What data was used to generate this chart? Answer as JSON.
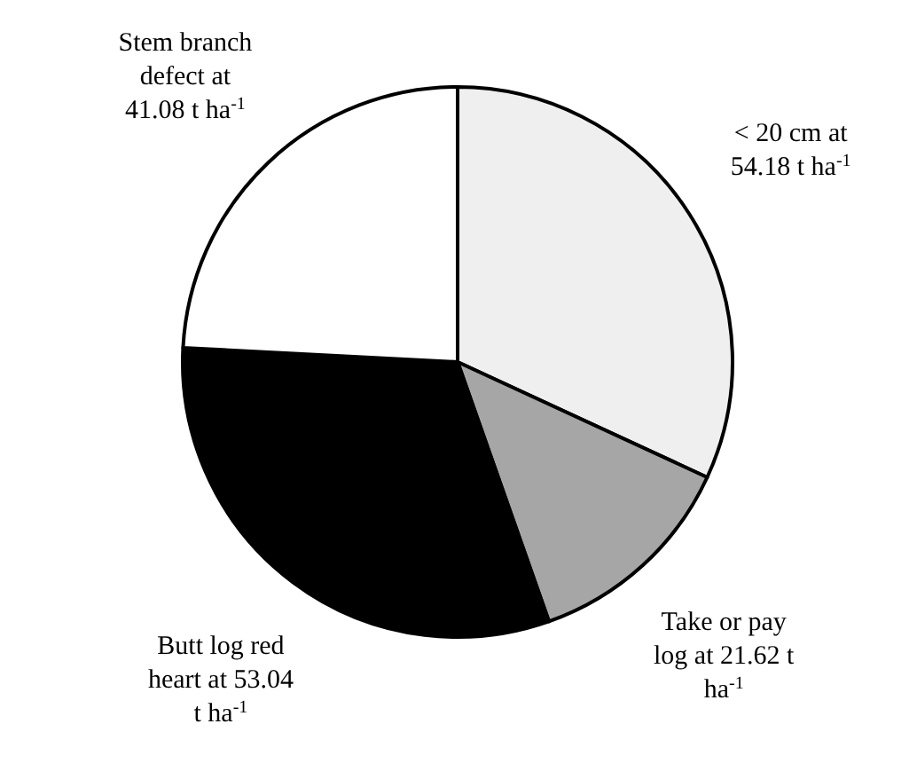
{
  "chart_data": {
    "type": "pie",
    "categories": [
      "< 20 cm at 54.18 t ha$^{-1}$",
      "Take or pay log at 21.62 t ha$^{-1}$",
      "Butt log red heart at 53.04 t ha$^{-1}$",
      "Stem branch defect at 41.08 t ha$^{-1}$"
    ],
    "values": [
      54.18,
      21.62,
      53.04,
      41.08
    ],
    "colors": [
      "#efefef",
      "#a6a6a6",
      "#000000",
      "#ffffff"
    ]
  }
}
